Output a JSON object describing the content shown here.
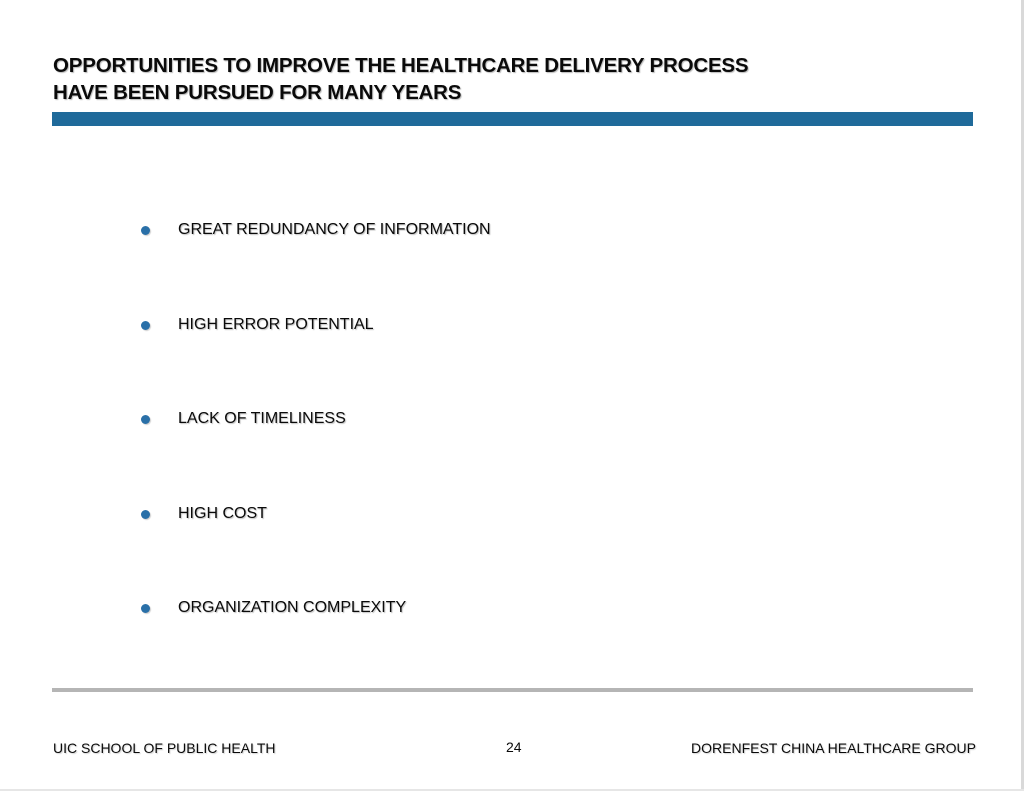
{
  "title": {
    "line1": "OPPORTUNITIES TO IMPROVE THE HEALTHCARE DELIVERY PROCESS",
    "line2": "HAVE BEEN PURSUED FOR MANY YEARS"
  },
  "bullets": [
    "GREAT REDUNDANCY OF INFORMATION",
    "HIGH ERROR POTENTIAL",
    "LACK OF TIMELINESS",
    "HIGH COST",
    "ORGANIZATION COMPLEXITY"
  ],
  "footer": {
    "left": "UIC SCHOOL OF PUBLIC HEALTH",
    "page_number": "24",
    "right": "DORENFEST CHINA HEALTHCARE GROUP"
  },
  "colors": {
    "accent_bar": "#1f6a9a",
    "bullet_dot": "#2a70a8",
    "footer_rule": "#b5b5b5"
  }
}
